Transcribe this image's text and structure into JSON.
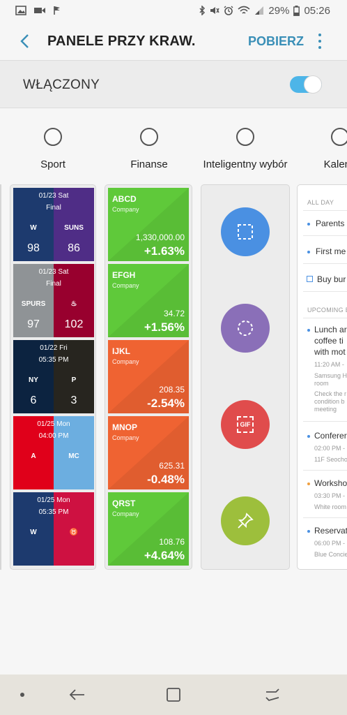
{
  "status_bar": {
    "battery": "29%",
    "time": "05:26"
  },
  "app_bar": {
    "title": "PANELE PRZY KRAW.",
    "action": "POBIERZ"
  },
  "master_switch": {
    "label": "WŁĄCZONY",
    "on": true
  },
  "panels": [
    {
      "label": "Sport"
    },
    {
      "label": "Finanse"
    },
    {
      "label": "Inteligentny wybór"
    },
    {
      "label": "Kalend"
    }
  ],
  "sport": {
    "games": [
      {
        "date": "01/23 Sat",
        "status": "Final",
        "left_color": "#1d3a6e",
        "right_color": "#4f2d86",
        "left_logo": "W",
        "right_logo": "SUNS",
        "left_score": "98",
        "right_score": "86"
      },
      {
        "date": "01/23 Sat",
        "status": "Final",
        "left_color": "#8f9396",
        "right_color": "#98002e",
        "left_logo": "SPURS",
        "right_logo": "♨",
        "left_score": "97",
        "right_score": "102"
      },
      {
        "date": "01/22 Fri",
        "status": "05:35 PM",
        "left_color": "#0c2340",
        "right_color": "#27251f",
        "left_logo": "NY",
        "right_logo": "P",
        "left_score": "6",
        "right_score": "3"
      },
      {
        "date": "01/25 Mon",
        "status": "04:00 PM",
        "left_color": "#e0001a",
        "right_color": "#6caee0",
        "left_logo": "A",
        "right_logo": "MC",
        "left_score": "",
        "right_score": ""
      },
      {
        "date": "01/25 Mon",
        "status": "05:35 PM",
        "left_color": "#1d3a6e",
        "right_color": "#ce1141",
        "left_logo": "W",
        "right_logo": "♉",
        "left_score": "",
        "right_score": ""
      }
    ]
  },
  "finance": {
    "stocks": [
      {
        "symbol": "ABCD",
        "company": "Company",
        "price": "1,330,000.00",
        "change": "+1.63%",
        "color": "#5fc93a"
      },
      {
        "symbol": "EFGH",
        "company": "Company",
        "price": "34.72",
        "change": "+1.56%",
        "color": "#5fc93a"
      },
      {
        "symbol": "IJKL",
        "company": "Company",
        "price": "208.35",
        "change": "-2.54%",
        "color": "#ef6332"
      },
      {
        "symbol": "MNOP",
        "company": "Company",
        "price": "625.31",
        "change": "-0.48%",
        "color": "#ef6332"
      },
      {
        "symbol": "QRST",
        "company": "Company",
        "price": "108.76",
        "change": "+4.64%",
        "color": "#5fc93a"
      }
    ]
  },
  "smart_select": {
    "tools": [
      {
        "icon": "rectangle-select-icon",
        "color": "#4a90e2"
      },
      {
        "icon": "oval-select-icon",
        "color": "#8a6fb8"
      },
      {
        "icon": "gif-icon",
        "color": "#e04c4c",
        "text": "GIF"
      },
      {
        "icon": "pin-icon",
        "color": "#9dbf3c"
      }
    ]
  },
  "calendar": {
    "all_day_header": "ALL DAY",
    "all_day_items": [
      "Parents",
      "First me",
      "Buy bur"
    ],
    "upcoming_header": "UPCOMING E",
    "events": [
      {
        "title_lines": [
          "Lunch ar",
          "coffee ti",
          "with mot"
        ],
        "time": "11:20 AM -",
        "details": [
          "Samsung H",
          "room",
          "Check the r",
          "condition b",
          "meeting"
        ],
        "color": "#4a90e2"
      },
      {
        "title_lines": [
          "Conferer"
        ],
        "time": "02:00 PM -",
        "details": [
          "11F Seocho"
        ],
        "color": "#4a90e2"
      },
      {
        "title_lines": [
          "Worksho"
        ],
        "time": "03:30 PM -",
        "details": [
          "White room"
        ],
        "color": "#f0a040"
      },
      {
        "title_lines": [
          "Reservat"
        ],
        "time": "06:00 PM -",
        "details": [
          "Blue Concie"
        ],
        "color": "#4a90e2"
      }
    ]
  }
}
